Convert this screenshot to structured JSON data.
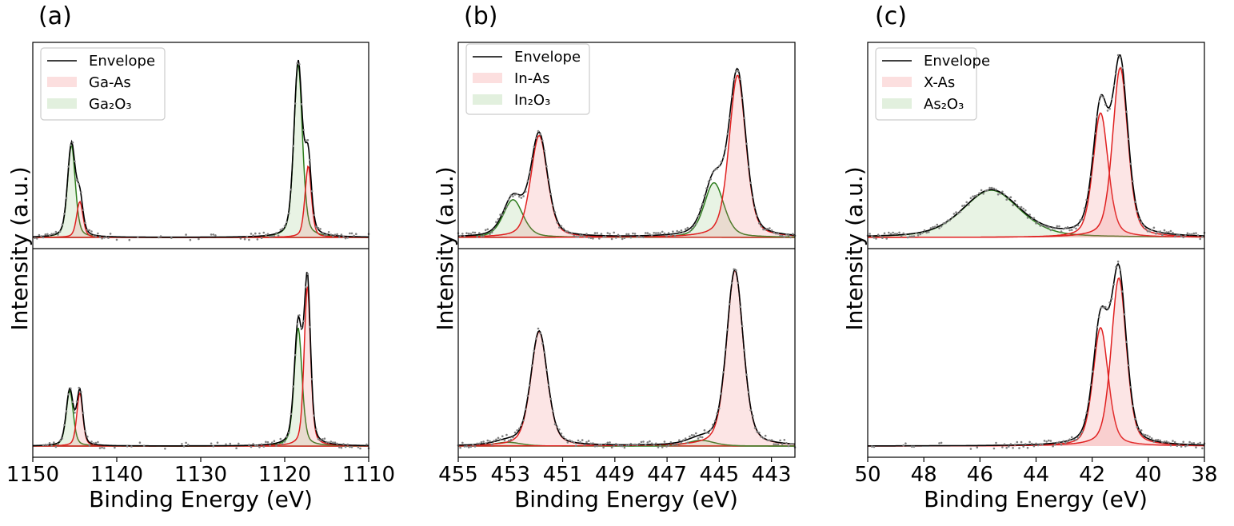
{
  "chart_data": [
    {
      "type": "line",
      "panel_label": "(a)",
      "xlabel": "Binding Energy (eV)",
      "ylabel": "Intensity (a.u.)",
      "xlim": [
        1150,
        1110
      ],
      "xticks": [
        "1150",
        "1140",
        "1130",
        "1120",
        "1110"
      ],
      "xtick_values": [
        1150,
        1140,
        1130,
        1120,
        1110
      ],
      "legend": [
        {
          "label": "Envelope",
          "kind": "line",
          "color": "#000000"
        },
        {
          "label": "Ga-As",
          "kind": "patch",
          "color": "#e06666"
        },
        {
          "label": "Ga₂O₃",
          "kind": "patch",
          "color": "#6aa84f"
        }
      ],
      "legend_position": "top-left",
      "subplots": [
        {
          "name": "top",
          "ymax": 1.0,
          "ymin": -0.02,
          "peaks": [
            {
              "component": "Ga2O3",
              "center": 1145.4,
              "height": 0.49,
              "width": 0.55,
              "color": "#2e7d1e"
            },
            {
              "component": "Ga-As",
              "center": 1144.4,
              "height": 0.19,
              "width": 0.45,
              "color": "#e02020"
            },
            {
              "component": "Ga2O3",
              "center": 1118.4,
              "height": 0.92,
              "width": 0.6,
              "color": "#2e7d1e"
            },
            {
              "component": "Ga-As",
              "center": 1117.2,
              "height": 0.38,
              "width": 0.45,
              "color": "#e02020"
            }
          ]
        },
        {
          "name": "bottom",
          "ymax": 1.0,
          "ymin": -0.02,
          "peaks": [
            {
              "component": "Ga2O3",
              "center": 1145.6,
              "height": 0.29,
              "width": 0.5,
              "color": "#2e7d1e"
            },
            {
              "component": "Ga-As",
              "center": 1144.4,
              "height": 0.28,
              "width": 0.42,
              "color": "#e02020"
            },
            {
              "component": "Ga2O3",
              "center": 1118.4,
              "height": 0.62,
              "width": 0.55,
              "color": "#2e7d1e"
            },
            {
              "component": "Ga-As",
              "center": 1117.3,
              "height": 0.84,
              "width": 0.45,
              "color": "#e02020"
            }
          ]
        }
      ]
    },
    {
      "type": "line",
      "panel_label": "(b)",
      "xlabel": "Binding Energy (eV)",
      "ylabel": "Intensity (a.u.)",
      "xlim": [
        455,
        442.1
      ],
      "xticks": [
        "455",
        "453",
        "451",
        "449",
        "447",
        "445",
        "443"
      ],
      "xtick_values": [
        455,
        453,
        451,
        449,
        447,
        445,
        443
      ],
      "legend": [
        {
          "label": "Envelope",
          "kind": "line",
          "color": "#000000"
        },
        {
          "label": "In-As",
          "kind": "patch",
          "color": "#e06666"
        },
        {
          "label": "In₂O₃",
          "kind": "patch",
          "color": "#6aa84f"
        }
      ],
      "legend_position": "top-left",
      "subplots": [
        {
          "name": "top",
          "ymax": 1.0,
          "ymin": -0.02,
          "peaks": [
            {
              "component": "In2O3",
              "center": 452.9,
              "height": 0.2,
              "width": 0.45,
              "color": "#2e7d1e"
            },
            {
              "component": "In-As",
              "center": 451.9,
              "height": 0.54,
              "width": 0.38,
              "color": "#e02020"
            },
            {
              "component": "In2O3",
              "center": 445.2,
              "height": 0.29,
              "width": 0.45,
              "color": "#2e7d1e"
            },
            {
              "component": "In-As",
              "center": 444.3,
              "height": 0.86,
              "width": 0.38,
              "color": "#e02020"
            }
          ]
        },
        {
          "name": "bottom",
          "ymax": 1.0,
          "ymin": -0.02,
          "peaks": [
            {
              "component": "In2O3",
              "center": 453.1,
              "height": 0.02,
              "width": 0.6,
              "color": "#2e7d1e"
            },
            {
              "component": "In-As",
              "center": 451.9,
              "height": 0.6,
              "width": 0.38,
              "color": "#e02020"
            },
            {
              "component": "In2O3",
              "center": 445.7,
              "height": 0.03,
              "width": 0.6,
              "color": "#2e7d1e"
            },
            {
              "component": "In-As",
              "center": 444.4,
              "height": 0.92,
              "width": 0.38,
              "color": "#e02020"
            }
          ]
        }
      ]
    },
    {
      "type": "line",
      "panel_label": "(c)",
      "xlabel": "Binding Energy (eV)",
      "ylabel": "Intensity (a.u.)",
      "xlim": [
        50,
        38
      ],
      "xticks": [
        "50",
        "48",
        "46",
        "44",
        "42",
        "40",
        "38"
      ],
      "xtick_values": [
        50,
        48,
        46,
        44,
        42,
        40,
        38
      ],
      "legend": [
        {
          "label": "Envelope",
          "kind": "line",
          "color": "#000000"
        },
        {
          "label": "X-As",
          "kind": "patch",
          "color": "#e06666"
        },
        {
          "label": "As₂O₃",
          "kind": "patch",
          "color": "#6aa84f"
        }
      ],
      "legend_position": "top-left",
      "subplots": [
        {
          "name": "top",
          "ymax": 1.0,
          "ymin": -0.02,
          "peaks": [
            {
              "component": "As2O3",
              "center": 45.6,
              "height": 0.25,
              "width": 1.2,
              "color": "#2e7d1e"
            },
            {
              "component": "X-As",
              "center": 41.7,
              "height": 0.66,
              "width": 0.32,
              "color": "#e02020"
            },
            {
              "component": "X-As",
              "center": 41.0,
              "height": 0.9,
              "width": 0.32,
              "color": "#e02020"
            }
          ]
        },
        {
          "name": "bottom",
          "ymax": 1.0,
          "ymin": -0.02,
          "peaks": [
            {
              "component": "X-As",
              "center": 41.7,
              "height": 0.62,
              "width": 0.32,
              "color": "#e02020"
            },
            {
              "component": "X-As",
              "center": 41.05,
              "height": 0.88,
              "width": 0.32,
              "color": "#e02020"
            }
          ]
        }
      ]
    }
  ]
}
